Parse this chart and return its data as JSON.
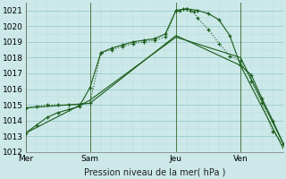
{
  "xlabel": "Pression niveau de la mer( hPa )",
  "bg_color": "#cce8e8",
  "grid_major_color": "#99cccc",
  "grid_minor_color": "#bbdddd",
  "line_color": "#1a5c1a",
  "ylim": [
    1012,
    1021.5
  ],
  "xlim": [
    0,
    72
  ],
  "xtick_positions": [
    0,
    18,
    42,
    60,
    72
  ],
  "xtick_labels": [
    "Mer",
    "Sam",
    "Jeu",
    "Ven",
    ""
  ],
  "ytick_positions": [
    1012,
    1013,
    1014,
    1015,
    1016,
    1017,
    1018,
    1019,
    1020,
    1021
  ],
  "vline_positions": [
    0,
    18,
    42,
    60,
    72
  ],
  "line1_x": [
    0,
    18,
    42,
    60,
    72
  ],
  "line1_y": [
    1014.8,
    1015.1,
    1019.4,
    1017.5,
    1012.2
  ],
  "line2_x": [
    0,
    18,
    42,
    60,
    72
  ],
  "line2_y": [
    1013.2,
    1015.3,
    1019.3,
    1018.0,
    1012.5
  ],
  "line3_x": [
    0,
    3,
    6,
    9,
    12,
    15,
    18,
    21,
    24,
    27,
    30,
    33,
    36,
    39,
    42,
    45,
    48,
    51,
    54,
    57,
    60,
    63,
    66,
    69,
    72
  ],
  "line3_y": [
    1013.2,
    1013.7,
    1014.2,
    1014.5,
    1014.7,
    1014.9,
    1016.1,
    1018.3,
    1018.6,
    1018.8,
    1019.0,
    1019.1,
    1019.2,
    1019.5,
    1021.0,
    1021.1,
    1021.0,
    1020.8,
    1020.4,
    1019.4,
    1017.5,
    1016.9,
    1015.4,
    1014.0,
    1012.5
  ],
  "line4_x": [
    0,
    3,
    6,
    9,
    12,
    15,
    18,
    21,
    24,
    27,
    30,
    33,
    36,
    39,
    42,
    43,
    44,
    45,
    46,
    47,
    48,
    51,
    54,
    57,
    60,
    63,
    66,
    69,
    72
  ],
  "line4_y": [
    1014.8,
    1014.9,
    1015.0,
    1015.0,
    1015.0,
    1015.0,
    1015.1,
    1018.3,
    1018.5,
    1018.7,
    1018.9,
    1019.0,
    1019.1,
    1019.3,
    1021.0,
    1021.0,
    1021.1,
    1021.1,
    1021.0,
    1020.9,
    1020.5,
    1019.8,
    1018.9,
    1018.1,
    1017.8,
    1016.5,
    1015.1,
    1013.3,
    1012.5
  ]
}
